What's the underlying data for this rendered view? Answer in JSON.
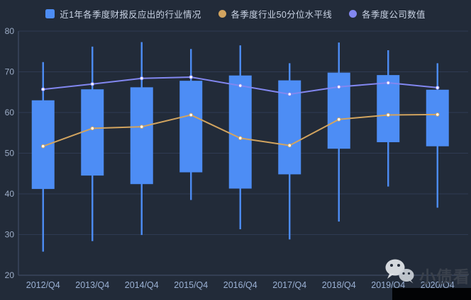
{
  "legend": {
    "items": [
      {
        "label": "近1年各季度财报反应出的行业情况",
        "color": "#4D8DF5",
        "shape": "square"
      },
      {
        "label": "各季度行业50分位水平线",
        "color": "#D2A45F",
        "shape": "circle"
      },
      {
        "label": "各季度公司数值",
        "color": "#8287F0",
        "shape": "circle"
      }
    ]
  },
  "watermark": {
    "text": "小债看市"
  },
  "chart_data": {
    "type": "candlestick",
    "title": "",
    "xlabel": "",
    "ylabel": "",
    "categories": [
      "2012/Q4",
      "2013/Q4",
      "2014/Q4",
      "2015/Q4",
      "2016/Q4",
      "2017/Q4",
      "2018/Q4",
      "2019/Q4",
      "2020/Q4"
    ],
    "ylim": [
      20,
      80
    ],
    "yticks": [
      20,
      30,
      40,
      50,
      60,
      70,
      80
    ],
    "grid": true,
    "legend_position": "top",
    "series": [
      {
        "name": "近1年各季度财报反应出的行业情况",
        "type": "candlestick",
        "color": "#4D8DF5",
        "box_top": [
          63.0,
          65.7,
          66.2,
          67.8,
          69.1,
          67.9,
          69.8,
          69.2,
          65.6
        ],
        "box_bottom": [
          41.2,
          44.5,
          42.4,
          45.3,
          41.3,
          44.8,
          51.1,
          52.7,
          51.7
        ],
        "high": [
          72.4,
          76.2,
          77.3,
          75.6,
          76.5,
          72.1,
          77.2,
          75.3,
          72.1
        ],
        "low": [
          25.8,
          28.4,
          29.9,
          38.5,
          31.3,
          28.8,
          33.2,
          41.8,
          36.6
        ]
      },
      {
        "name": "各季度行业50分位水平线",
        "type": "line",
        "color": "#D2A45F",
        "values": [
          51.7,
          56.1,
          56.5,
          59.4,
          53.7,
          51.9,
          58.3,
          59.4,
          59.5
        ]
      },
      {
        "name": "各季度公司数值",
        "type": "line",
        "color": "#8287F0",
        "values": [
          65.7,
          67.0,
          68.4,
          68.7,
          66.6,
          64.5,
          66.3,
          67.3,
          66.1
        ]
      }
    ]
  },
  "colors": {
    "background": "#222B39",
    "gridline": "#2F3B52",
    "axis_line": "#46536E",
    "y_label": "#9EAEC8",
    "x_label": "#9BB1D4",
    "point_fill": "#FFFFFF"
  }
}
